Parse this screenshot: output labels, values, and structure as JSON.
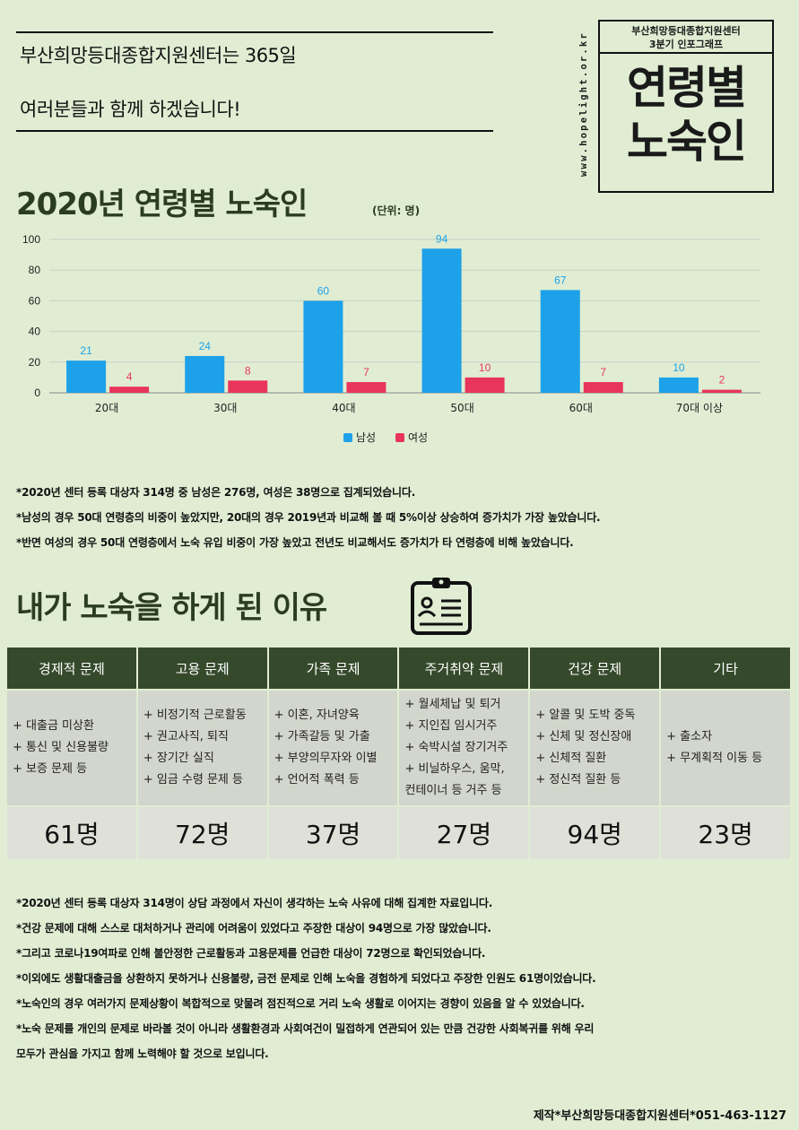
{
  "intro": {
    "line1": "부산희망등대종합지원센터는 365일",
    "line2": "여러분들과 함께 하겠습니다!"
  },
  "badge": {
    "url": "www.hopelight.or.kr",
    "org": "부산희망등대종합지원센터",
    "edition": "3분기 인포그래프",
    "title_line1": "연령별",
    "title_line2": "노숙인"
  },
  "chart_section": {
    "title": "2020년 연령별 노숙인",
    "unit": "(단위: 명)"
  },
  "chart_data": {
    "type": "bar",
    "categories": [
      "20대",
      "30대",
      "40대",
      "50대",
      "60대",
      "70대 이상"
    ],
    "series": [
      {
        "name": "남성",
        "color": "#1da1e8",
        "values": [
          21,
          24,
          60,
          94,
          67,
          10
        ]
      },
      {
        "name": "여성",
        "color": "#e8365a",
        "values": [
          4,
          8,
          7,
          10,
          7,
          2
        ]
      }
    ],
    "ylim": [
      0,
      100
    ],
    "yticks": [
      0,
      20,
      40,
      60,
      80,
      100
    ],
    "grid": true,
    "legend": "bottom"
  },
  "chart_notes": [
    "*2020년 센터 등록 대상자 314명 중 남성은 276명, 여성은 38명으로 집계되었습니다.",
    "*남성의 경우 50대 연령층의 비중이  높았지만, 20대의 경우 2019년과 비교해 볼 때 5%이상 상승하여 증가치가 가장 높았습니다.",
    "*반면 여성의 경우 50대 연령층에서 노숙 유입 비중이 가장 높았고 전년도 비교해서도 증가치가 타 연령층에 비해 높았습니다."
  ],
  "reasons_section": {
    "title": "내가 노숙을 하게 된 이유",
    "icon": "clipboard-id-icon"
  },
  "reasons": [
    {
      "header": "경제적 문제",
      "items": [
        "+ 대출금 미상환",
        "+ 통신 및 신용불량",
        "+ 보증 문제 등"
      ],
      "count": "61명"
    },
    {
      "header": "고용 문제",
      "items": [
        "+ 비정기적 근로활동",
        "+ 권고사직, 퇴직",
        "+ 장기간 실직",
        "+ 임금 수령 문제 등"
      ],
      "count": "72명"
    },
    {
      "header": "가족 문제",
      "items": [
        "+ 이혼, 자녀양육",
        "+ 가족갈등 및 가출",
        "+ 부양의무자와 이별",
        "+ 언어적 폭력 등"
      ],
      "count": "37명"
    },
    {
      "header": "주거취약 문제",
      "items": [
        "+ 월세체납 및 퇴거",
        "+ 지인집 임시거주",
        "+ 숙박시설 장기거주",
        "+ 비닐하우스, 움막,",
        "컨테이너 등 거주 등"
      ],
      "count": "27명"
    },
    {
      "header": "건강 문제",
      "items": [
        "+ 알콜 및 도박 중독",
        "+ 신체 및 정신장애",
        "+ 신체적 질환",
        "+ 정신적 질환 등"
      ],
      "count": "94명"
    },
    {
      "header": "기타",
      "items": [
        "+ 출소자",
        "+ 무계획적 이동 등"
      ],
      "count": "23명"
    }
  ],
  "reasons_notes": [
    "*2020년 센터 등록 대상자 314명이 상담 과정에서 자신이 생각하는 노숙 사유에 대해 집계한 자료입니다.",
    "*건강 문제에 대해 스스로 대처하거나 관리에 어려움이 있었다고 주장한 대상이 94명으로 가장 많았습니다.",
    "*그리고 코로나19여파로 인해 불안정한 근로활동과 고용문제를 언급한 대상이 72명으로 확인되었습니다.",
    "*이외에도 생활대출금을 상환하지 못하거나 신용불량, 금전 문제로 인해 노숙을 경험하게 되었다고 주장한 인원도 61명이었습니다.",
    "*노숙인의 경우 여러가지 문제상황이 복합적으로 맞물려 점진적으로 거리 노숙 생활로 이어지는 경향이 있음을 알 수 있었습니다.",
    "*노숙 문제를 개인의 문제로 바라볼 것이 아니라 생활환경과 사회여건이 밀접하게 연관되어 있는 만큼 건강한 사회복귀를 위해 우리",
    "모두가 관심을 가지고 함께 노력해야 할 것으로 보입니다."
  ],
  "footer": "제작*부산희망등대종합지원센터*051-463-1127"
}
